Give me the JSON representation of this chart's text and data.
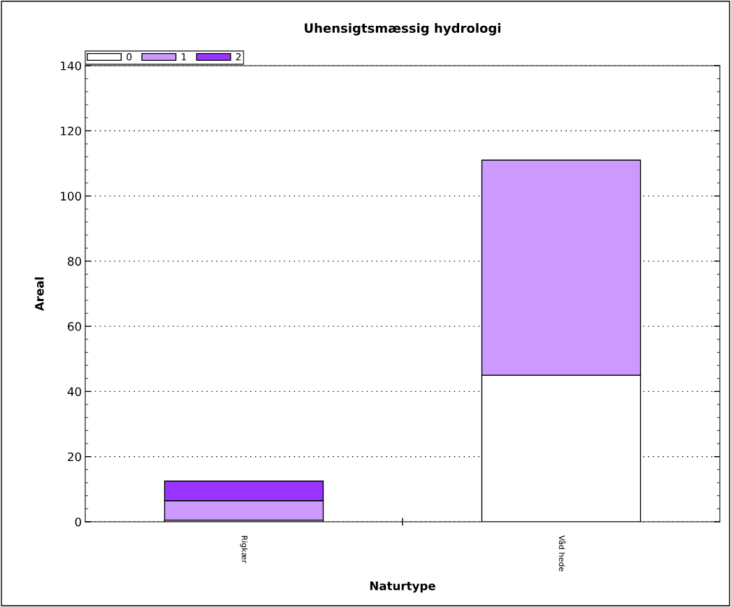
{
  "chart_data": {
    "type": "bar",
    "title": "Uhensigtsmæssig hydrologi",
    "xlabel": "Naturtype",
    "ylabel": "Areal",
    "categories": [
      "Rigkær",
      "Våd hede"
    ],
    "series": [
      {
        "name": "0",
        "color": "#ffffff",
        "values": [
          0.5,
          45
        ]
      },
      {
        "name": "1",
        "color": "#cc99ff",
        "values": [
          6,
          66
        ]
      },
      {
        "name": "2",
        "color": "#9933ff",
        "values": [
          6,
          null
        ]
      }
    ],
    "stacked": true,
    "ylim": [
      0,
      140
    ],
    "yticks": [
      0,
      20,
      40,
      60,
      80,
      100,
      120,
      140
    ],
    "grid": "y",
    "legend": "top left"
  }
}
